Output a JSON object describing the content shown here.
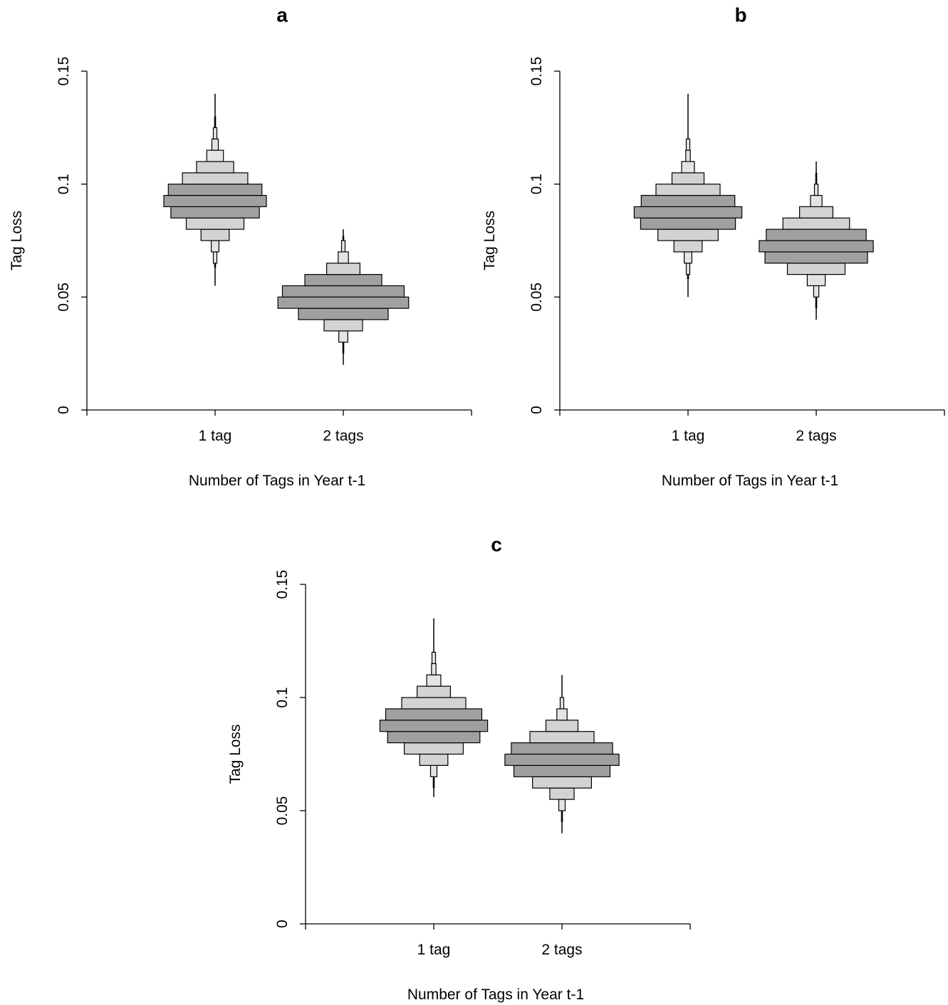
{
  "chart_data": [
    {
      "type": "histogram-violin",
      "panel_label": "a",
      "xlabel": "Number of Tags in Year t-1",
      "ylabel": "Tag Loss",
      "ylim": [
        0,
        0.15
      ],
      "yticks": [
        0,
        0.05,
        0.1,
        0.15
      ],
      "ytick_labels": [
        "0",
        "0.05",
        "0.1",
        "0.15"
      ],
      "categories": [
        "1 tag",
        "2 tags"
      ],
      "series": [
        {
          "category": "1 tag",
          "bin_width": 0.005,
          "bins": [
            {
              "low": 0.065,
              "high": 0.07,
              "width": 0.02
            },
            {
              "low": 0.07,
              "high": 0.075,
              "width": 0.06
            },
            {
              "low": 0.075,
              "high": 0.08,
              "width": 0.22
            },
            {
              "low": 0.08,
              "high": 0.085,
              "width": 0.45
            },
            {
              "low": 0.085,
              "high": 0.09,
              "width": 0.69
            },
            {
              "low": 0.09,
              "high": 0.095,
              "width": 0.8
            },
            {
              "low": 0.095,
              "high": 0.1,
              "width": 0.73
            },
            {
              "low": 0.1,
              "high": 0.105,
              "width": 0.51
            },
            {
              "low": 0.105,
              "high": 0.11,
              "width": 0.29
            },
            {
              "low": 0.11,
              "high": 0.115,
              "width": 0.13
            },
            {
              "low": 0.115,
              "high": 0.12,
              "width": 0.05
            },
            {
              "low": 0.12,
              "high": 0.125,
              "width": 0.015
            }
          ],
          "whisker": [
            0.055,
            0.14
          ],
          "tail": [
            0.063,
            0.13
          ]
        },
        {
          "category": "2 tags",
          "bin_width": 0.005,
          "bins": [
            {
              "low": 0.03,
              "high": 0.035,
              "width": 0.07
            },
            {
              "low": 0.035,
              "high": 0.04,
              "width": 0.3
            },
            {
              "low": 0.04,
              "high": 0.045,
              "width": 0.7
            },
            {
              "low": 0.045,
              "high": 0.05,
              "width": 1.02
            },
            {
              "low": 0.05,
              "high": 0.055,
              "width": 0.95
            },
            {
              "low": 0.055,
              "high": 0.06,
              "width": 0.6
            },
            {
              "low": 0.06,
              "high": 0.065,
              "width": 0.26
            },
            {
              "low": 0.065,
              "high": 0.07,
              "width": 0.08
            },
            {
              "low": 0.07,
              "high": 0.075,
              "width": 0.02
            }
          ],
          "whisker": [
            0.02,
            0.08
          ],
          "tail": [
            0.025,
            0.077
          ]
        }
      ]
    },
    {
      "type": "histogram-violin",
      "panel_label": "b",
      "xlabel": "Number of Tags in Year t-1",
      "ylabel": "Tag Loss",
      "ylim": [
        0,
        0.15
      ],
      "yticks": [
        0,
        0.05,
        0.1,
        0.15
      ],
      "ytick_labels": [
        "0",
        "0.05",
        "0.1",
        "0.15"
      ],
      "categories": [
        "1 tag",
        "2 tags"
      ],
      "series": [
        {
          "category": "1 tag",
          "bin_width": 0.005,
          "bins": [
            {
              "low": 0.06,
              "high": 0.065,
              "width": 0.02
            },
            {
              "low": 0.065,
              "high": 0.07,
              "width": 0.06
            },
            {
              "low": 0.07,
              "high": 0.075,
              "width": 0.22
            },
            {
              "low": 0.075,
              "high": 0.08,
              "width": 0.47
            },
            {
              "low": 0.08,
              "high": 0.085,
              "width": 0.74
            },
            {
              "low": 0.085,
              "high": 0.09,
              "width": 0.84
            },
            {
              "low": 0.09,
              "high": 0.095,
              "width": 0.73
            },
            {
              "low": 0.095,
              "high": 0.1,
              "width": 0.5
            },
            {
              "low": 0.1,
              "high": 0.105,
              "width": 0.25
            },
            {
              "low": 0.105,
              "high": 0.11,
              "width": 0.1
            },
            {
              "low": 0.11,
              "high": 0.115,
              "width": 0.035
            },
            {
              "low": 0.115,
              "high": 0.12,
              "width": 0.01
            }
          ],
          "whisker": [
            0.05,
            0.14
          ],
          "tail": [
            0.058,
            0.12
          ]
        },
        {
          "category": "2 tags",
          "bin_width": 0.005,
          "bins": [
            {
              "low": 0.05,
              "high": 0.055,
              "width": 0.04
            },
            {
              "low": 0.055,
              "high": 0.06,
              "width": 0.14
            },
            {
              "low": 0.06,
              "high": 0.065,
              "width": 0.45
            },
            {
              "low": 0.065,
              "high": 0.07,
              "width": 0.8
            },
            {
              "low": 0.07,
              "high": 0.075,
              "width": 0.89
            },
            {
              "low": 0.075,
              "high": 0.08,
              "width": 0.78
            },
            {
              "low": 0.08,
              "high": 0.085,
              "width": 0.52
            },
            {
              "low": 0.085,
              "high": 0.09,
              "width": 0.26
            },
            {
              "low": 0.09,
              "high": 0.095,
              "width": 0.09
            },
            {
              "low": 0.095,
              "high": 0.1,
              "width": 0.02
            }
          ],
          "whisker": [
            0.04,
            0.11
          ],
          "tail": [
            0.045,
            0.105
          ]
        }
      ]
    },
    {
      "type": "histogram-violin",
      "panel_label": "c",
      "xlabel": "Number of Tags in Year t-1",
      "ylabel": "Tag Loss",
      "ylim": [
        0,
        0.15
      ],
      "yticks": [
        0,
        0.05,
        0.1,
        0.15
      ],
      "ytick_labels": [
        "0",
        "0.05",
        "0.1",
        "0.15"
      ],
      "categories": [
        "1 tag",
        "2 tags"
      ],
      "series": [
        {
          "category": "1 tag",
          "bin_width": 0.005,
          "bins": [
            {
              "low": 0.065,
              "high": 0.07,
              "width": 0.05
            },
            {
              "low": 0.07,
              "high": 0.075,
              "width": 0.22
            },
            {
              "low": 0.075,
              "high": 0.08,
              "width": 0.46
            },
            {
              "low": 0.08,
              "high": 0.085,
              "width": 0.72
            },
            {
              "low": 0.085,
              "high": 0.09,
              "width": 0.84
            },
            {
              "low": 0.09,
              "high": 0.095,
              "width": 0.75
            },
            {
              "low": 0.095,
              "high": 0.1,
              "width": 0.5
            },
            {
              "low": 0.1,
              "high": 0.105,
              "width": 0.26
            },
            {
              "low": 0.105,
              "high": 0.11,
              "width": 0.11
            },
            {
              "low": 0.11,
              "high": 0.115,
              "width": 0.035
            },
            {
              "low": 0.115,
              "high": 0.12,
              "width": 0.01
            }
          ],
          "whisker": [
            0.056,
            0.135
          ],
          "tail": [
            0.06,
            0.12
          ]
        },
        {
          "category": "2 tags",
          "bin_width": 0.005,
          "bins": [
            {
              "low": 0.05,
              "high": 0.055,
              "width": 0.05
            },
            {
              "low": 0.055,
              "high": 0.06,
              "width": 0.19
            },
            {
              "low": 0.06,
              "high": 0.065,
              "width": 0.46
            },
            {
              "low": 0.065,
              "high": 0.07,
              "width": 0.75
            },
            {
              "low": 0.07,
              "high": 0.075,
              "width": 0.89
            },
            {
              "low": 0.075,
              "high": 0.08,
              "width": 0.79
            },
            {
              "low": 0.08,
              "high": 0.085,
              "width": 0.5
            },
            {
              "low": 0.085,
              "high": 0.09,
              "width": 0.25
            },
            {
              "low": 0.09,
              "high": 0.095,
              "width": 0.08
            },
            {
              "low": 0.095,
              "high": 0.1,
              "width": 0.02
            }
          ],
          "whisker": [
            0.04,
            0.11
          ],
          "tail": [
            0.045,
            0.1
          ]
        }
      ]
    }
  ]
}
